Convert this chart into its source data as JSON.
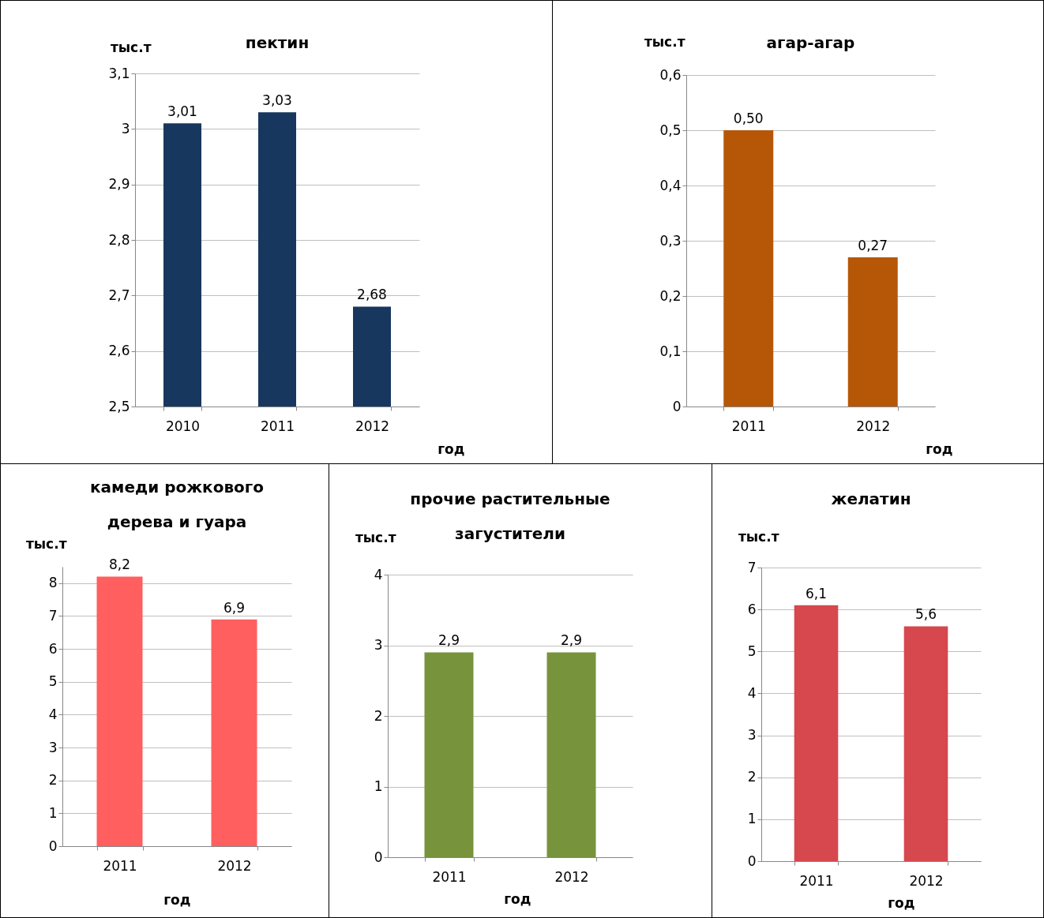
{
  "chart_data": [
    {
      "type": "bar",
      "title": "пектин",
      "ylabel": "тыс.т",
      "xlabel": "год",
      "categories": [
        "2010",
        "2011",
        "2012"
      ],
      "series": [
        {
          "color": "#17375e",
          "values": [
            3.01,
            3.03,
            2.68
          ],
          "value_labels": [
            "3,01",
            "3,03",
            "2,68"
          ]
        }
      ],
      "ylim": [
        2.5,
        3.1
      ],
      "yticks": [
        {
          "value": 2.5,
          "label": "2,5"
        },
        {
          "value": 2.6,
          "label": "2,6"
        },
        {
          "value": 2.7,
          "label": "2,7"
        },
        {
          "value": 2.8,
          "label": "2,8"
        },
        {
          "value": 2.9,
          "label": "2,9"
        },
        3,
        {
          "value": 3.1,
          "label": "3,1"
        }
      ],
      "grid": true
    },
    {
      "type": "bar",
      "title": "агар-агар",
      "ylabel": "тыс.т",
      "xlabel": "год",
      "categories": [
        "2011",
        "2012"
      ],
      "series": [
        {
          "color": "#b65708",
          "values": [
            0.5,
            0.27
          ],
          "value_labels": [
            "0,50",
            "0,27"
          ]
        }
      ],
      "ylim": [
        0,
        0.6
      ],
      "yticks": [
        0,
        {
          "value": 0.1,
          "label": "0,1"
        },
        {
          "value": 0.2,
          "label": "0,2"
        },
        {
          "value": 0.3,
          "label": "0,3"
        },
        {
          "value": 0.4,
          "label": "0,4"
        },
        {
          "value": 0.5,
          "label": "0,5"
        },
        {
          "value": 0.6,
          "label": "0,6"
        }
      ],
      "grid": true
    },
    {
      "type": "bar",
      "title": "камеди рожкового\nдерева и гуара",
      "ylabel": "тыс.т",
      "xlabel": "год",
      "categories": [
        "2011",
        "2012"
      ],
      "series": [
        {
          "color": "#ff5f5f",
          "values": [
            8.2,
            6.9
          ],
          "value_labels": [
            "8,2",
            "6,9"
          ]
        }
      ],
      "ylim": [
        0,
        8.5
      ],
      "yticks": [
        0,
        1,
        2,
        3,
        4,
        5,
        6,
        7,
        8
      ],
      "grid": true
    },
    {
      "type": "bar",
      "title": "прочие растительные\nзагустители",
      "ylabel": "тыс.т",
      "xlabel": "год",
      "categories": [
        "2011",
        "2012"
      ],
      "series": [
        {
          "color": "#77933c",
          "values": [
            2.9,
            2.9
          ],
          "value_labels": [
            "2,9",
            "2,9"
          ]
        }
      ],
      "ylim": [
        0,
        4
      ],
      "yticks": [
        0,
        1,
        2,
        3,
        4
      ],
      "grid": true
    },
    {
      "type": "bar",
      "title": "желатин",
      "ylabel": "тыс.т",
      "xlabel": "год",
      "categories": [
        "2011",
        "2012"
      ],
      "series": [
        {
          "color": "#d6474e",
          "values": [
            6.1,
            5.6
          ],
          "value_labels": [
            "6,1",
            "5,6"
          ]
        }
      ],
      "ylim": [
        0,
        7
      ],
      "yticks": [
        0,
        1,
        2,
        3,
        4,
        5,
        6,
        7
      ],
      "grid": true
    }
  ]
}
